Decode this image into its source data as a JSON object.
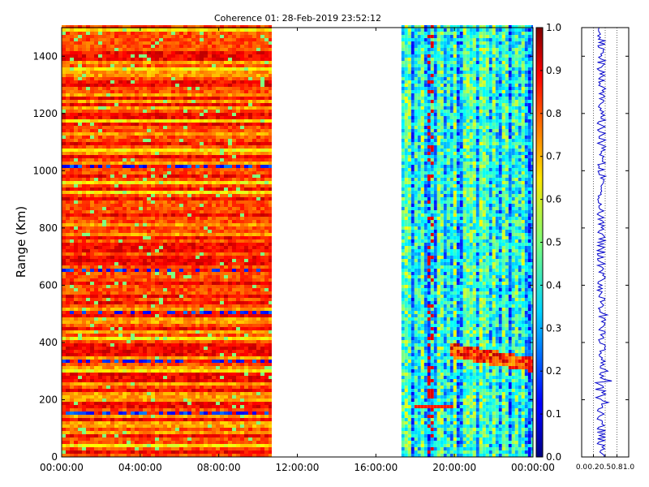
{
  "figure": {
    "title": "Coherence 01: 28-Feb-2019 23:52:12"
  },
  "chart_data": [
    {
      "type": "heatmap",
      "title": "Coherence 01: 28-Feb-2019 23:52:12",
      "xlabel": "",
      "ylabel": "Range (Km)",
      "x_tick_labels": [
        "00:00:00",
        "04:00:00",
        "08:00:00",
        "12:00:00",
        "16:00:00",
        "20:00:00",
        "00:00:00"
      ],
      "x_range_hours": [
        0,
        24
      ],
      "ylim": [
        0,
        1500
      ],
      "y_ticks": [
        0,
        200,
        400,
        600,
        800,
        1000,
        1200,
        1400
      ],
      "colormap": "jet",
      "data_segments": [
        {
          "start_hour": 0.0,
          "end_hour": 10.7,
          "typical_value": 0.82,
          "description_value_range": [
            0.6,
            1.0
          ]
        },
        {
          "start_hour": 17.3,
          "end_hour": 24.0,
          "typical_value": 0.35,
          "description_value_range": [
            0.1,
            0.6
          ]
        }
      ],
      "notable_low_ranges_km": [
        150,
        340,
        500,
        655,
        1020
      ],
      "notable_high_features_km": [
        180,
        370
      ],
      "grid": false
    },
    {
      "type": "colorbar",
      "range": [
        0.0,
        1.0
      ],
      "ticks": [
        "0.0",
        "0.1",
        "0.2",
        "0.3",
        "0.4",
        "0.5",
        "0.6",
        "0.7",
        "0.8",
        "0.9",
        "1.0"
      ],
      "colormap": "jet"
    },
    {
      "type": "line",
      "xlim": [
        0.0,
        1.0
      ],
      "x_tick_labels": [
        "0.0",
        "0.2",
        "0.5",
        "0.8",
        "1.0"
      ],
      "x_ticks": [
        0.0,
        0.25,
        0.5,
        0.75,
        1.0
      ],
      "ylim": [
        0,
        1500
      ],
      "mean_value": 0.42,
      "line_color": "#0000cc",
      "grid": "dotted-vertical"
    }
  ]
}
